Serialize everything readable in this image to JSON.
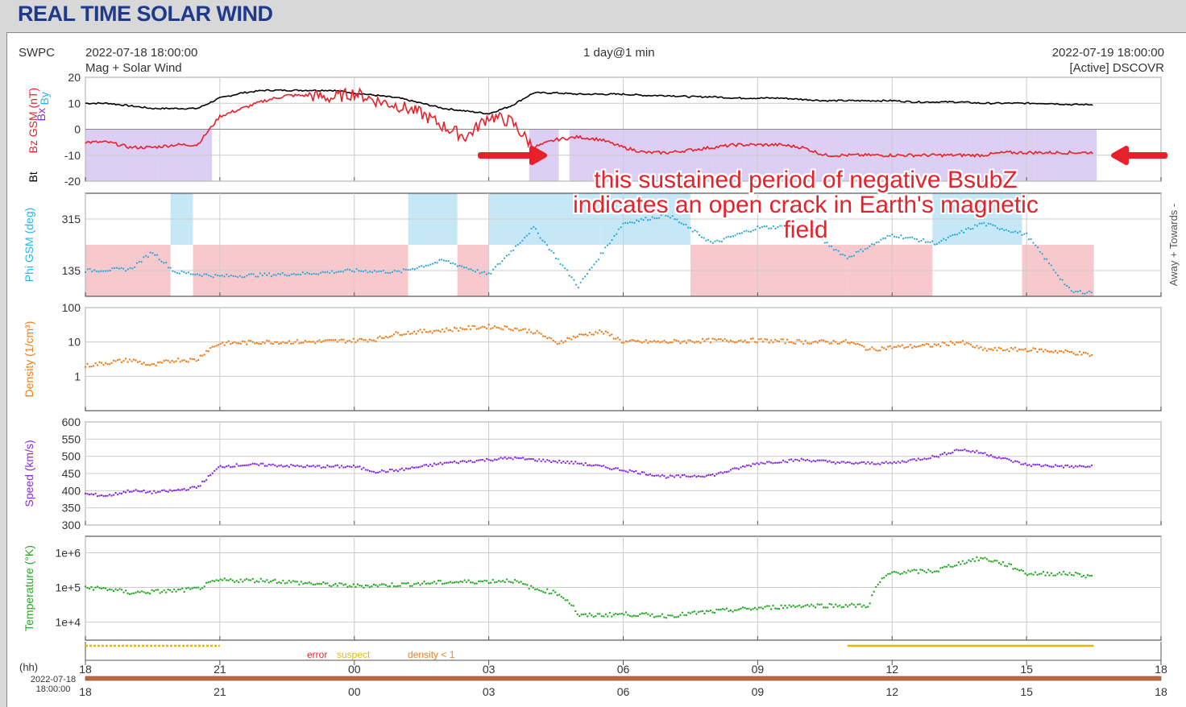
{
  "page_title": "REAL TIME SOLAR WIND",
  "header": {
    "source": "SWPC",
    "start_time": "2022-07-18 18:00:00",
    "subtitle": "Mag + Solar Wind",
    "resolution": "1 day@1 min",
    "end_time": "2022-07-19 18:00:00",
    "spacecraft": "[Active] DSCOVR"
  },
  "annotation": {
    "text": "this sustained period of negative BsubZ indicates an open crack in Earth's magnetic field",
    "color": "#e8202a"
  },
  "chart_data": [
    {
      "type": "line",
      "panel": "mag",
      "ylabel_parts": [
        "Bz GSM (nT)",
        "Bx",
        "By",
        "Bt"
      ],
      "yticks": [
        20,
        10,
        0,
        -10,
        -20
      ],
      "ylim": [
        -20,
        20
      ],
      "x_hours": [
        0,
        0.5,
        1,
        1.5,
        2,
        2.5,
        3,
        3.5,
        4,
        4.5,
        5,
        5.5,
        6,
        6.5,
        7,
        7.5,
        8,
        8.5,
        9,
        9.5,
        10,
        10.5,
        11,
        11.5,
        12,
        12.5,
        13,
        13.5,
        14,
        14.5,
        15,
        15.5,
        16,
        16.5,
        17,
        17.5,
        18,
        18.5,
        19,
        19.5,
        20,
        20.5,
        21,
        21.5,
        22,
        22.5
      ],
      "series": [
        {
          "name": "Bt",
          "color": "#000000",
          "values": [
            10,
            10,
            9,
            8,
            8,
            8,
            12,
            14,
            15,
            15,
            15,
            15,
            14,
            13,
            12,
            10,
            8,
            7,
            6,
            9,
            14,
            14,
            13.5,
            13.5,
            13.5,
            13,
            13,
            12.5,
            12.5,
            12,
            12,
            12,
            11.5,
            11,
            11,
            11,
            11,
            10.5,
            10.5,
            10.5,
            10,
            10,
            10,
            10,
            9.5,
            9.5
          ]
        },
        {
          "name": "Bz GSM (nT)",
          "color": "#e8202a",
          "values": [
            -5,
            -5,
            -7,
            -7,
            -6,
            -6,
            5,
            8,
            11,
            13,
            13,
            12,
            14,
            11,
            9,
            6,
            1,
            -3,
            5,
            3,
            -7,
            -4,
            -3,
            -4,
            -7,
            -9,
            -9,
            -8,
            -7,
            -6,
            -6,
            -6,
            -7,
            -10,
            -10,
            -10,
            -10,
            -10,
            -10,
            -10,
            -10,
            -9,
            -9,
            -9,
            -9,
            -9
          ]
        }
      ],
      "shaded_negative_bz_color": "#d9c9f2"
    },
    {
      "type": "scatter",
      "panel": "phi",
      "ylabel": "Phi GSM (deg)",
      "right_label": "Away + Towards -",
      "yticks": [
        315,
        135
      ],
      "ylim": [
        45,
        405
      ],
      "x_hours": [
        0,
        1,
        1.5,
        2,
        3,
        4,
        5,
        6,
        7,
        8,
        9,
        10,
        11,
        12,
        13,
        14,
        15,
        16,
        17,
        18,
        19,
        20,
        21,
        22,
        22.5
      ],
      "values": [
        135,
        140,
        200,
        130,
        115,
        120,
        125,
        135,
        130,
        170,
        120,
        285,
        80,
        300,
        330,
        230,
        285,
        290,
        180,
        260,
        230,
        300,
        260,
        60,
        60
      ],
      "shading": [
        {
          "from": 0,
          "to": 1.9,
          "color": "#f7c8cc"
        },
        {
          "from": 1.9,
          "to": 2.4,
          "color": "#c6e8f6"
        },
        {
          "from": 2.4,
          "to": 7.2,
          "color": "#f7c8cc"
        },
        {
          "from": 7.2,
          "to": 8.3,
          "color": "#c6e8f6"
        },
        {
          "from": 8.3,
          "to": 9.0,
          "color": "#f7c8cc"
        },
        {
          "from": 9.0,
          "to": 11.5,
          "color": "#c6e8f6"
        },
        {
          "from": 11.5,
          "to": 13.5,
          "color": "#c6e8f6"
        },
        {
          "from": 13.5,
          "to": 17.0,
          "color": "#f7c8cc"
        },
        {
          "from": 17.0,
          "to": 18.9,
          "color": "#f7c8cc"
        },
        {
          "from": 18.9,
          "to": 20.9,
          "color": "#c6e8f6"
        },
        {
          "from": 20.9,
          "to": 22.5,
          "color": "#f7c8cc"
        }
      ]
    },
    {
      "type": "line",
      "panel": "density",
      "ylabel": "Density (1/cm³)",
      "scale": "log",
      "yticks": [
        "100",
        "10",
        "1"
      ],
      "ylim": [
        0.1,
        100
      ],
      "color": "#f07d1a",
      "x_hours": [
        0,
        0.5,
        1,
        1.5,
        2,
        2.5,
        3,
        4,
        5,
        6,
        6.5,
        7,
        7.5,
        8,
        8.5,
        9,
        9.5,
        10,
        10.5,
        11,
        11.5,
        12,
        13,
        14,
        15,
        16,
        17,
        17.5,
        18,
        19,
        19.5,
        20,
        21,
        22,
        22.5
      ],
      "values": [
        2,
        2.5,
        3,
        2,
        3,
        3,
        9,
        10,
        10,
        11,
        12,
        18,
        20,
        22,
        25,
        28,
        25,
        20,
        9,
        15,
        20,
        10,
        10,
        11,
        11,
        10,
        10,
        6,
        7,
        8,
        10,
        6,
        6,
        5,
        4
      ]
    },
    {
      "type": "line",
      "panel": "speed",
      "ylabel": "Speed (km/s)",
      "yticks": [
        600,
        550,
        500,
        450,
        400,
        350,
        300
      ],
      "ylim": [
        300,
        600
      ],
      "color": "#8a2be2",
      "x_hours": [
        0,
        0.5,
        1,
        1.5,
        2,
        2.5,
        3,
        3.5,
        4,
        5,
        6,
        6.5,
        7,
        8,
        9,
        9.5,
        10,
        11,
        12,
        13,
        14,
        15,
        16,
        17,
        17.5,
        18,
        19,
        19.5,
        20,
        21,
        22,
        22.5
      ],
      "values": [
        390,
        385,
        400,
        395,
        400,
        410,
        470,
        475,
        475,
        470,
        470,
        455,
        460,
        480,
        490,
        495,
        490,
        480,
        460,
        440,
        445,
        480,
        490,
        480,
        480,
        480,
        500,
        520,
        510,
        475,
        470,
        470
      ]
    },
    {
      "type": "line",
      "panel": "temperature",
      "ylabel": "Temperature (°K)",
      "scale": "log",
      "yticks": [
        "1e+6",
        "1e+5",
        "1e+4"
      ],
      "ylim": [
        3000,
        3000000
      ],
      "color": "#22aa22",
      "x_hours": [
        0,
        0.5,
        1,
        1.5,
        2,
        2.5,
        3,
        4,
        5,
        6,
        7,
        8,
        9,
        9.5,
        10,
        10.5,
        11,
        12,
        13,
        14,
        15,
        16,
        17,
        17.5,
        18,
        19,
        19.5,
        20,
        21,
        22,
        22.5
      ],
      "values": [
        100000,
        90000,
        70000,
        75000,
        80000,
        90000,
        160000,
        160000,
        130000,
        110000,
        120000,
        140000,
        150000,
        160000,
        90000,
        70000,
        15000,
        17000,
        15000,
        20000,
        25000,
        30000,
        30000,
        30000,
        270000,
        300000,
        500000,
        700000,
        250000,
        250000,
        200000
      ]
    }
  ],
  "quality_legend": {
    "error": "error",
    "suspect": "suspect",
    "density_lt_1": "density < 1",
    "error_color": "#e8202a",
    "suspect_color": "#e6b800",
    "density_color": "#f07d1a"
  },
  "x_axis": {
    "unit_label": "(hh)",
    "tick_labels": [
      "18",
      "21",
      "00",
      "03",
      "06",
      "09",
      "12",
      "15",
      "18"
    ],
    "start_date": "2022-07-18",
    "start_clock": "18:00:00"
  }
}
